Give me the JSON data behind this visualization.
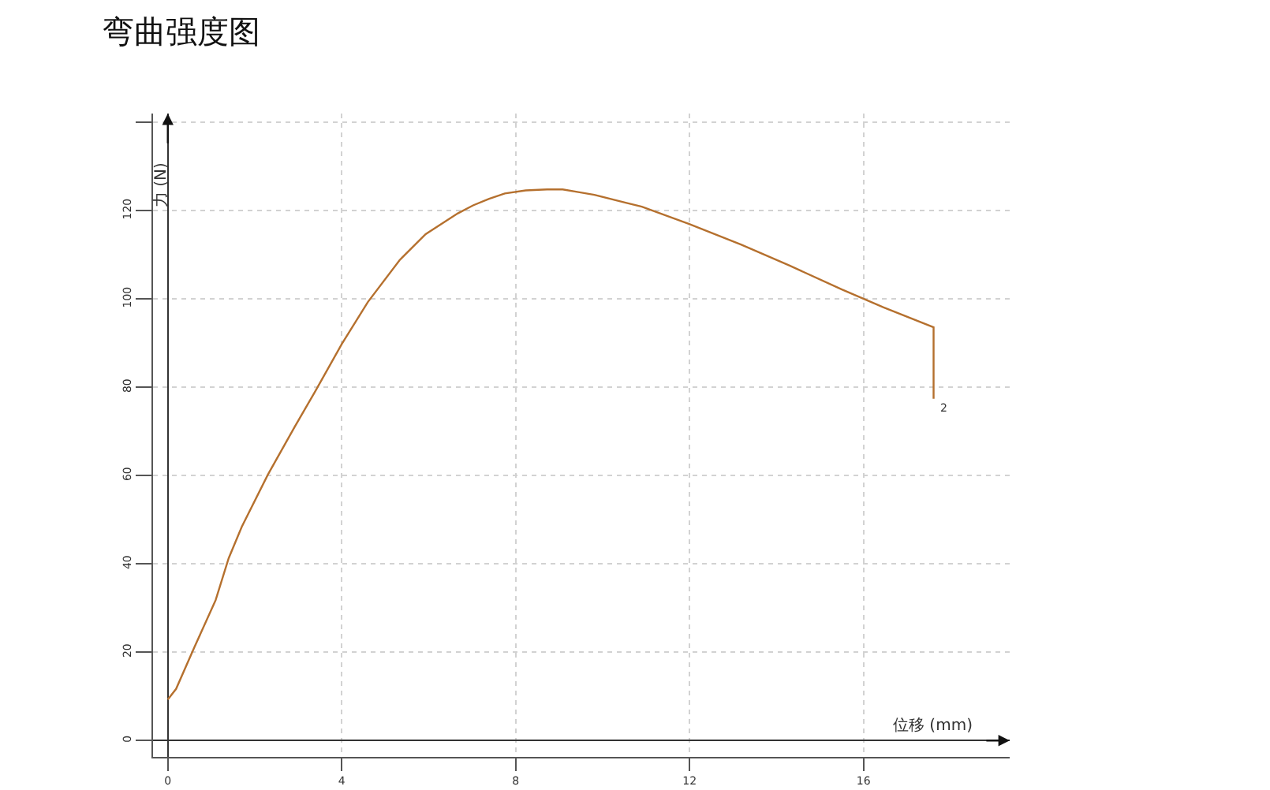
{
  "chart_data": {
    "type": "line",
    "title": "弯曲强度图",
    "xlabel": "位移 (mm)",
    "ylabel": "力 (N)",
    "x": [
      0,
      0.19,
      0.61,
      1.1,
      1.4,
      1.7,
      2.3,
      2.91,
      3.39,
      4.0,
      4.6,
      5.33,
      5.93,
      6.67,
      7.02,
      7.39,
      7.75,
      8.23,
      8.72,
      9.08,
      9.44,
      9.81,
      10.17,
      10.53,
      10.9,
      11.99,
      13.19,
      14.29,
      15.49,
      16.46,
      17.61,
      17.61
    ],
    "series": [
      {
        "color": "#b5702e",
        "values": [
          9.3,
          11.7,
          21.1,
          31.8,
          41.3,
          48.4,
          60.2,
          70.9,
          79.1,
          89.8,
          99.3,
          108.8,
          114.7,
          119.4,
          121.2,
          122.7,
          123.9,
          124.6,
          124.8,
          124.8,
          124.2,
          123.6,
          122.7,
          121.8,
          120.9,
          117.0,
          112.3,
          107.6,
          102.2,
          98.1,
          93.6,
          77.4
        ]
      }
    ],
    "xlim": [
      -0.34,
      19.36
    ],
    "ylim": [
      -3.7,
      142
    ],
    "xticks": [
      0,
      4,
      8,
      12,
      16
    ],
    "yticks": [
      0,
      20,
      40,
      60,
      80,
      100,
      120,
      {
        "value": 140,
        "label": null
      }
    ],
    "grid": true,
    "marker": "none",
    "line_style": "solid",
    "annotations": [
      {
        "text": "2",
        "x": 17.61,
        "y": 77.4
      }
    ]
  }
}
